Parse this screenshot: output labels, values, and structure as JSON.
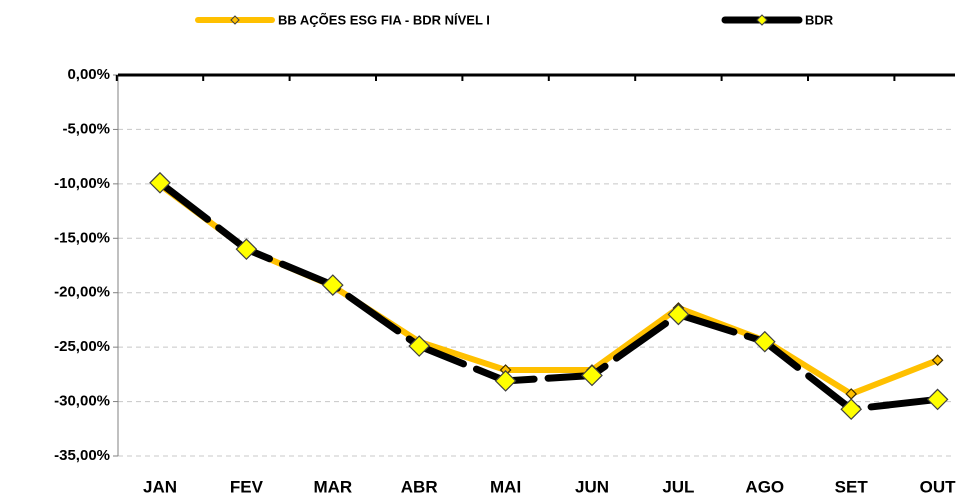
{
  "chart_data": {
    "type": "line",
    "categories": [
      "JAN",
      "FEV",
      "MAR",
      "ABR",
      "MAI",
      "JUN",
      "JUL",
      "AGO",
      "SET",
      "OUT"
    ],
    "series": [
      {
        "name": "BB AÇÕES ESG FIA - BDR NÍVEL I",
        "color": "#FFC000",
        "marker_fill": "#FFC000",
        "values": [
          -10.1,
          -16.0,
          -19.4,
          -24.5,
          -27.1,
          -27.1,
          -21.4,
          -24.4,
          -29.3,
          -26.2
        ]
      },
      {
        "name": "BDR",
        "color": "#000000",
        "marker_fill": "#FFFF00",
        "dashed": true,
        "values": [
          -9.9,
          -16.0,
          -19.3,
          -24.9,
          -28.1,
          -27.6,
          -22.0,
          -24.5,
          -30.7,
          -29.8
        ]
      }
    ],
    "ylim": [
      -35,
      0
    ],
    "yticks": [
      {
        "value": 0,
        "label": "0,00%"
      },
      {
        "value": -5,
        "label": "-5,00%"
      },
      {
        "value": -10,
        "label": "-10,00%"
      },
      {
        "value": -15,
        "label": "-15,00%"
      },
      {
        "value": -20,
        "label": "-20,00%"
      },
      {
        "value": -25,
        "label": "-25,00%"
      },
      {
        "value": -30,
        "label": "-30,00%"
      },
      {
        "value": -35,
        "label": "-35,00%"
      }
    ],
    "grid": true
  }
}
